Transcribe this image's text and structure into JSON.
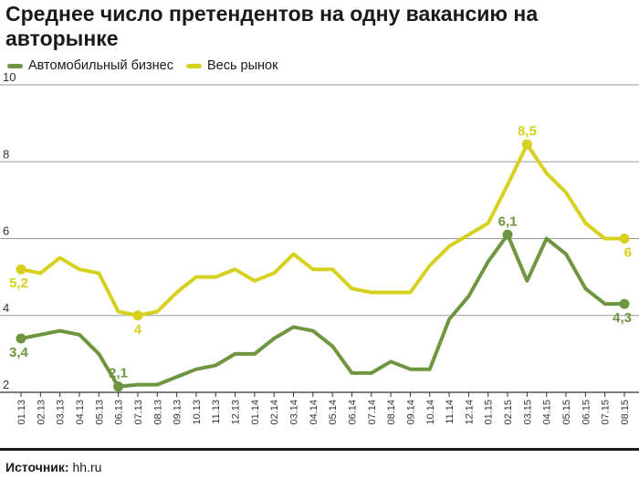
{
  "title": "Среднее число претендентов на одну вакансию на авторынке",
  "source": {
    "label": "Источник:",
    "value": "hh.ru"
  },
  "chart_data": {
    "type": "line",
    "title": "Среднее число претендентов на одну вакансию на авторынке",
    "xlabel": "",
    "ylabel": "",
    "ylim": [
      2,
      10
    ],
    "yticks": [
      2,
      4,
      6,
      8,
      10
    ],
    "grid": true,
    "legend_position": "top-left",
    "categories": [
      "01.13",
      "02.13",
      "03.13",
      "04.13",
      "05.13",
      "06.13",
      "07.13",
      "08.13",
      "09.13",
      "10.13",
      "11.13",
      "12.13",
      "01.14",
      "02.14",
      "03.14",
      "04.14",
      "05.14",
      "06.14",
      "07.14",
      "08.14",
      "09.14",
      "10.14",
      "11.14",
      "12.14",
      "01.15",
      "02.15",
      "03.15",
      "04.15",
      "05.15",
      "06.15",
      "07.15",
      "08.15"
    ],
    "series": [
      {
        "name": "Автомобильный бизнес",
        "color": "#6e9640",
        "values": [
          3.4,
          3.5,
          3.6,
          3.5,
          3.0,
          2.15,
          2.2,
          2.2,
          2.4,
          2.6,
          2.7,
          3.0,
          3.0,
          3.4,
          3.7,
          3.6,
          3.2,
          2.5,
          2.5,
          2.8,
          2.6,
          2.6,
          3.9,
          4.5,
          5.4,
          6.1,
          4.9,
          6.0,
          5.6,
          4.7,
          4.3,
          4.3
        ],
        "labels": [
          {
            "index": 0,
            "text": "3,4",
            "position": "below"
          },
          {
            "index": 5,
            "text": "2,1",
            "position": "above"
          },
          {
            "index": 25,
            "text": "6,1",
            "position": "above"
          },
          {
            "index": 31,
            "text": "4,3",
            "position": "below"
          }
        ]
      },
      {
        "name": "Весь рынок",
        "color": "#d6d01e",
        "values": [
          5.2,
          5.1,
          5.5,
          5.2,
          5.1,
          4.1,
          4.0,
          4.1,
          4.6,
          5.0,
          5.0,
          5.2,
          4.9,
          5.1,
          5.6,
          5.2,
          5.2,
          4.7,
          4.6,
          4.6,
          4.6,
          5.3,
          5.8,
          6.1,
          6.4,
          7.4,
          8.45,
          7.7,
          7.2,
          6.4,
          6.0,
          6.0
        ],
        "labels": [
          {
            "index": 0,
            "text": "5,2",
            "position": "below"
          },
          {
            "index": 6,
            "text": "4",
            "position": "below"
          },
          {
            "index": 26,
            "text": "8,5",
            "position": "above"
          },
          {
            "index": 31,
            "text": "6",
            "position": "below"
          }
        ]
      }
    ]
  }
}
